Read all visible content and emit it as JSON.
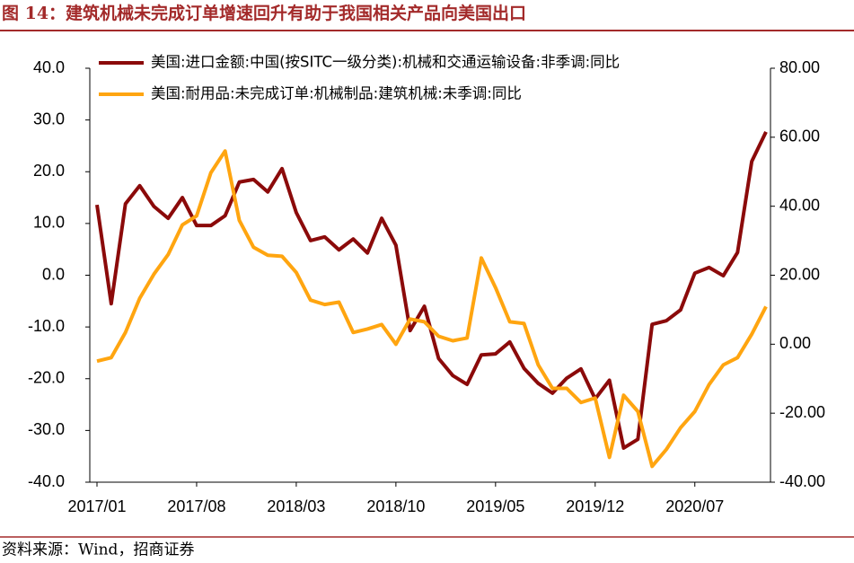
{
  "chart_data": {
    "type": "line",
    "title": "图 14：建筑机械未完成订单增速回升有助于我国相关产品向美国出口",
    "source": "资料来源：Wind，招商证券",
    "categories": [
      "2017/01",
      null,
      null,
      null,
      null,
      null,
      null,
      "2017/08",
      null,
      null,
      null,
      null,
      null,
      null,
      "2018/03",
      null,
      null,
      null,
      null,
      null,
      null,
      "2018/10",
      null,
      null,
      null,
      null,
      null,
      null,
      "2019/05",
      null,
      null,
      null,
      null,
      null,
      null,
      "2019/12",
      null,
      null,
      null,
      null,
      null,
      null,
      "2020/07",
      null,
      null,
      null,
      null,
      null
    ],
    "series": [
      {
        "name": "美国:进口金额:中国(按SITC一级分类):机械和交通运输设备:非季调:同比",
        "color": "#8b0a0a",
        "axis": "y",
        "values": [
          13.6,
          -5.5,
          13.8,
          17.3,
          13.3,
          11.0,
          15.0,
          9.6,
          9.6,
          11.5,
          18.0,
          18.5,
          16.1,
          20.6,
          12.1,
          6.7,
          7.4,
          4.9,
          7.0,
          4.3,
          11.0,
          5.8,
          -10.7,
          -6.0,
          -16.1,
          -19.4,
          -21.1,
          -15.4,
          -15.2,
          -12.9,
          -18.0,
          -20.9,
          -22.8,
          -19.9,
          -18.1,
          -23.9,
          -20.3,
          -33.4,
          -31.7,
          -9.5,
          -8.8,
          -6.7,
          0.4,
          1.5,
          -0.1,
          4.4,
          22.0,
          27.7
        ]
      },
      {
        "name": "美国:耐用品:未完成订单:机械制品:建筑机械:未季调:同比",
        "color": "#ffa510",
        "axis": "y2",
        "values": [
          -4.9,
          -3.9,
          3.4,
          13.3,
          20.3,
          26.0,
          34.6,
          37.2,
          49.7,
          56.0,
          35.9,
          28.1,
          25.8,
          25.5,
          20.8,
          12.8,
          11.5,
          12.2,
          3.4,
          4.4,
          5.7,
          0,
          7.3,
          6.5,
          2.3,
          1.0,
          1.8,
          25.0,
          16.4,
          6.5,
          6.0,
          -6.0,
          -12.8,
          -12.8,
          -16.9,
          -15.6,
          -32.8,
          -14.8,
          -19.5,
          -35.4,
          -30.5,
          -24.2,
          -19.5,
          -11.7,
          -6.0,
          -3.9,
          2.9,
          10.9
        ]
      }
    ],
    "ylim": [
      -40,
      40
    ],
    "yticks": [
      {
        "value": -40,
        "label": "-40.0"
      },
      {
        "value": -30,
        "label": "-30.0"
      },
      {
        "value": -20,
        "label": "-20.0"
      },
      {
        "value": -10,
        "label": "-10.0"
      },
      {
        "value": 0,
        "label": "0.0"
      },
      {
        "value": 10,
        "label": "10.0"
      },
      {
        "value": 20,
        "label": "20.0"
      },
      {
        "value": 30,
        "label": "30.0"
      },
      {
        "value": 40,
        "label": "40.0"
      }
    ],
    "y2lim": [
      -40,
      80
    ],
    "y2ticks": [
      {
        "value": -40,
        "label": "-40.00"
      },
      {
        "value": -20,
        "label": "-20.00"
      },
      {
        "value": 0,
        "label": "0.00"
      },
      {
        "value": 20,
        "label": "20.00"
      },
      {
        "value": 40,
        "label": "40.00"
      },
      {
        "value": 60,
        "label": "60.00"
      },
      {
        "value": 80,
        "label": "80.00"
      }
    ],
    "legend": "upper left",
    "grid": false
  }
}
